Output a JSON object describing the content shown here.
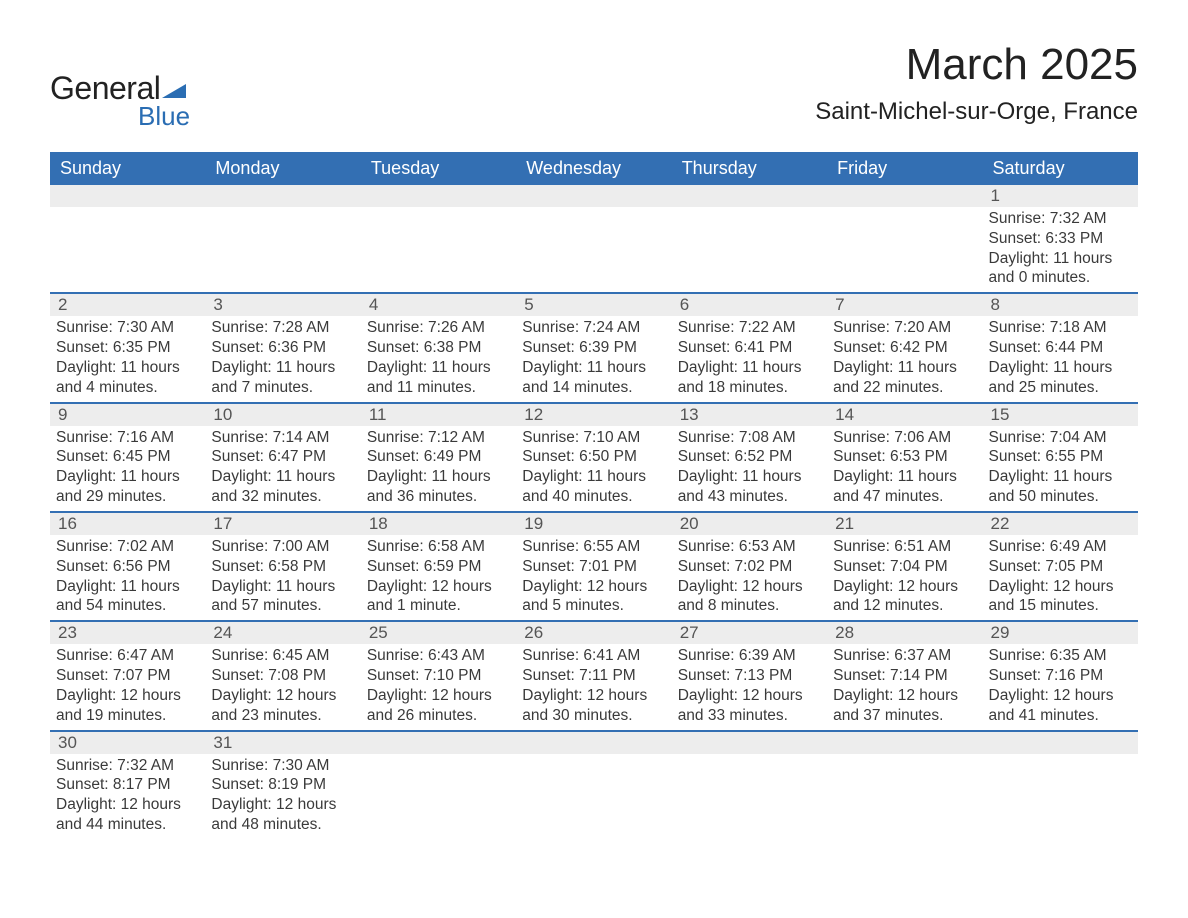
{
  "logo": {
    "text1": "General",
    "text2": "Blue",
    "triangle_color": "#2a6db3",
    "text1_color": "#222222",
    "text2_color": "#2a6db3"
  },
  "header": {
    "month": "March 2025",
    "location": "Saint-Michel-sur-Orge, France"
  },
  "colors": {
    "header_bg": "#336fb3",
    "header_text": "#ffffff",
    "row_bg": "#ededed",
    "divider": "#336fb3",
    "body_text": "#3a3a3a",
    "page_bg": "#ffffff"
  },
  "columns": [
    "Sunday",
    "Monday",
    "Tuesday",
    "Wednesday",
    "Thursday",
    "Friday",
    "Saturday"
  ],
  "weeks": [
    [
      {
        "n": "",
        "lines": []
      },
      {
        "n": "",
        "lines": []
      },
      {
        "n": "",
        "lines": []
      },
      {
        "n": "",
        "lines": []
      },
      {
        "n": "",
        "lines": []
      },
      {
        "n": "",
        "lines": []
      },
      {
        "n": "1",
        "lines": [
          "Sunrise: 7:32 AM",
          "Sunset: 6:33 PM",
          "Daylight: 11 hours and 0 minutes."
        ]
      }
    ],
    [
      {
        "n": "2",
        "lines": [
          "Sunrise: 7:30 AM",
          "Sunset: 6:35 PM",
          "Daylight: 11 hours and 4 minutes."
        ]
      },
      {
        "n": "3",
        "lines": [
          "Sunrise: 7:28 AM",
          "Sunset: 6:36 PM",
          "Daylight: 11 hours and 7 minutes."
        ]
      },
      {
        "n": "4",
        "lines": [
          "Sunrise: 7:26 AM",
          "Sunset: 6:38 PM",
          "Daylight: 11 hours and 11 minutes."
        ]
      },
      {
        "n": "5",
        "lines": [
          "Sunrise: 7:24 AM",
          "Sunset: 6:39 PM",
          "Daylight: 11 hours and 14 minutes."
        ]
      },
      {
        "n": "6",
        "lines": [
          "Sunrise: 7:22 AM",
          "Sunset: 6:41 PM",
          "Daylight: 11 hours and 18 minutes."
        ]
      },
      {
        "n": "7",
        "lines": [
          "Sunrise: 7:20 AM",
          "Sunset: 6:42 PM",
          "Daylight: 11 hours and 22 minutes."
        ]
      },
      {
        "n": "8",
        "lines": [
          "Sunrise: 7:18 AM",
          "Sunset: 6:44 PM",
          "Daylight: 11 hours and 25 minutes."
        ]
      }
    ],
    [
      {
        "n": "9",
        "lines": [
          "Sunrise: 7:16 AM",
          "Sunset: 6:45 PM",
          "Daylight: 11 hours and 29 minutes."
        ]
      },
      {
        "n": "10",
        "lines": [
          "Sunrise: 7:14 AM",
          "Sunset: 6:47 PM",
          "Daylight: 11 hours and 32 minutes."
        ]
      },
      {
        "n": "11",
        "lines": [
          "Sunrise: 7:12 AM",
          "Sunset: 6:49 PM",
          "Daylight: 11 hours and 36 minutes."
        ]
      },
      {
        "n": "12",
        "lines": [
          "Sunrise: 7:10 AM",
          "Sunset: 6:50 PM",
          "Daylight: 11 hours and 40 minutes."
        ]
      },
      {
        "n": "13",
        "lines": [
          "Sunrise: 7:08 AM",
          "Sunset: 6:52 PM",
          "Daylight: 11 hours and 43 minutes."
        ]
      },
      {
        "n": "14",
        "lines": [
          "Sunrise: 7:06 AM",
          "Sunset: 6:53 PM",
          "Daylight: 11 hours and 47 minutes."
        ]
      },
      {
        "n": "15",
        "lines": [
          "Sunrise: 7:04 AM",
          "Sunset: 6:55 PM",
          "Daylight: 11 hours and 50 minutes."
        ]
      }
    ],
    [
      {
        "n": "16",
        "lines": [
          "Sunrise: 7:02 AM",
          "Sunset: 6:56 PM",
          "Daylight: 11 hours and 54 minutes."
        ]
      },
      {
        "n": "17",
        "lines": [
          "Sunrise: 7:00 AM",
          "Sunset: 6:58 PM",
          "Daylight: 11 hours and 57 minutes."
        ]
      },
      {
        "n": "18",
        "lines": [
          "Sunrise: 6:58 AM",
          "Sunset: 6:59 PM",
          "Daylight: 12 hours and 1 minute."
        ]
      },
      {
        "n": "19",
        "lines": [
          "Sunrise: 6:55 AM",
          "Sunset: 7:01 PM",
          "Daylight: 12 hours and 5 minutes."
        ]
      },
      {
        "n": "20",
        "lines": [
          "Sunrise: 6:53 AM",
          "Sunset: 7:02 PM",
          "Daylight: 12 hours and 8 minutes."
        ]
      },
      {
        "n": "21",
        "lines": [
          "Sunrise: 6:51 AM",
          "Sunset: 7:04 PM",
          "Daylight: 12 hours and 12 minutes."
        ]
      },
      {
        "n": "22",
        "lines": [
          "Sunrise: 6:49 AM",
          "Sunset: 7:05 PM",
          "Daylight: 12 hours and 15 minutes."
        ]
      }
    ],
    [
      {
        "n": "23",
        "lines": [
          "Sunrise: 6:47 AM",
          "Sunset: 7:07 PM",
          "Daylight: 12 hours and 19 minutes."
        ]
      },
      {
        "n": "24",
        "lines": [
          "Sunrise: 6:45 AM",
          "Sunset: 7:08 PM",
          "Daylight: 12 hours and 23 minutes."
        ]
      },
      {
        "n": "25",
        "lines": [
          "Sunrise: 6:43 AM",
          "Sunset: 7:10 PM",
          "Daylight: 12 hours and 26 minutes."
        ]
      },
      {
        "n": "26",
        "lines": [
          "Sunrise: 6:41 AM",
          "Sunset: 7:11 PM",
          "Daylight: 12 hours and 30 minutes."
        ]
      },
      {
        "n": "27",
        "lines": [
          "Sunrise: 6:39 AM",
          "Sunset: 7:13 PM",
          "Daylight: 12 hours and 33 minutes."
        ]
      },
      {
        "n": "28",
        "lines": [
          "Sunrise: 6:37 AM",
          "Sunset: 7:14 PM",
          "Daylight: 12 hours and 37 minutes."
        ]
      },
      {
        "n": "29",
        "lines": [
          "Sunrise: 6:35 AM",
          "Sunset: 7:16 PM",
          "Daylight: 12 hours and 41 minutes."
        ]
      }
    ],
    [
      {
        "n": "30",
        "lines": [
          "Sunrise: 7:32 AM",
          "Sunset: 8:17 PM",
          "Daylight: 12 hours and 44 minutes."
        ]
      },
      {
        "n": "31",
        "lines": [
          "Sunrise: 7:30 AM",
          "Sunset: 8:19 PM",
          "Daylight: 12 hours and 48 minutes."
        ]
      },
      {
        "n": "",
        "lines": []
      },
      {
        "n": "",
        "lines": []
      },
      {
        "n": "",
        "lines": []
      },
      {
        "n": "",
        "lines": []
      },
      {
        "n": "",
        "lines": []
      }
    ]
  ]
}
